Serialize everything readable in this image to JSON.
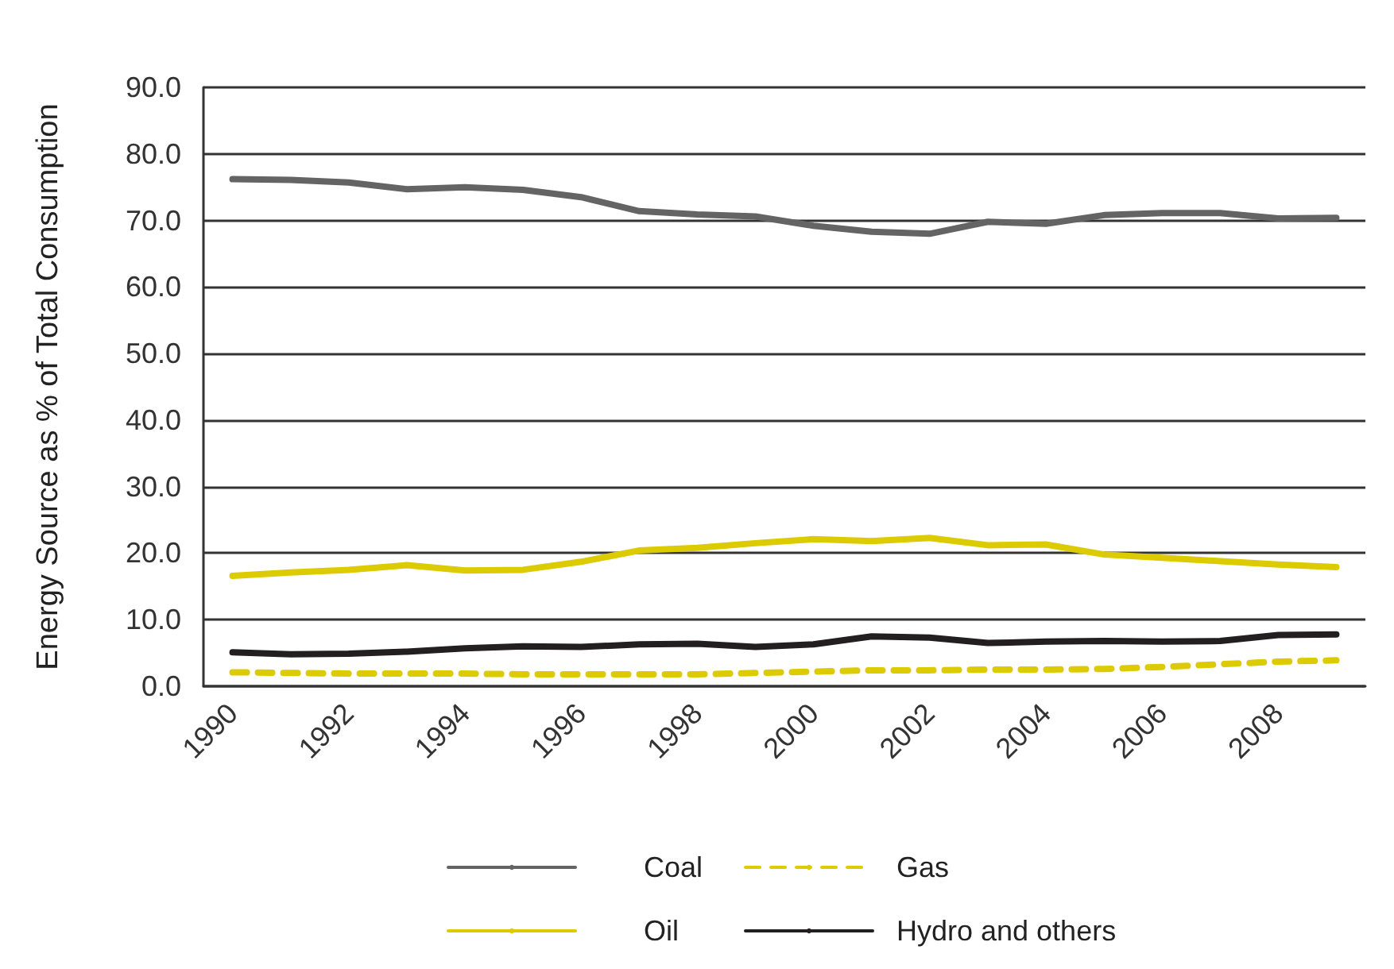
{
  "chart_data": {
    "type": "line",
    "ylabel": "Energy Source as % of Total Consumption",
    "categories": [
      "1990",
      null,
      "1992",
      null,
      "1994",
      null,
      "1996",
      null,
      "1998",
      null,
      "2000",
      null,
      "2002",
      null,
      "2004",
      null,
      "2006",
      null,
      "2008",
      null
    ],
    "series": [
      {
        "name": "Coal",
        "color": "#646464",
        "values": [
          76.2,
          76.1,
          75.7,
          74.7,
          75.0,
          74.6,
          73.5,
          71.4,
          70.9,
          70.6,
          69.2,
          68.3,
          68.0,
          69.8,
          69.5,
          70.8,
          71.1,
          71.1,
          70.3,
          70.4
        ]
      },
      {
        "name": "Gas",
        "color": "#dccb00",
        "line_style": "dashed",
        "values": [
          2.1,
          2.0,
          1.9,
          1.9,
          1.9,
          1.8,
          1.8,
          1.8,
          1.8,
          2.0,
          2.2,
          2.4,
          2.4,
          2.5,
          2.5,
          2.6,
          2.9,
          3.3,
          3.7,
          3.9
        ]
      },
      {
        "name": "Oil",
        "color": "#dccb00",
        "values": [
          16.6,
          17.1,
          17.5,
          18.2,
          17.4,
          17.5,
          18.7,
          20.4,
          20.8,
          21.5,
          22.1,
          21.8,
          22.3,
          21.2,
          21.3,
          19.8,
          19.3,
          18.8,
          18.3,
          17.9
        ]
      },
      {
        "name": "Hydro and others",
        "color": "#231f20",
        "values": [
          5.1,
          4.8,
          4.9,
          5.2,
          5.7,
          6.0,
          5.9,
          6.3,
          6.4,
          5.9,
          6.3,
          7.5,
          7.3,
          6.5,
          6.7,
          6.8,
          6.7,
          6.8,
          7.7,
          7.8
        ]
      }
    ],
    "ylim": [
      0,
      90
    ],
    "yticks": [
      {
        "value": 0,
        "label": "0.0"
      },
      {
        "value": 10,
        "label": "10.0"
      },
      {
        "value": 20,
        "label": "20.0"
      },
      {
        "value": 30,
        "label": "30.0"
      },
      {
        "value": 40,
        "label": "40.0"
      },
      {
        "value": 50,
        "label": "50.0"
      },
      {
        "value": 60,
        "label": "60.0"
      },
      {
        "value": 70,
        "label": "70.0"
      },
      {
        "value": 80,
        "label": "80.0"
      },
      {
        "value": 90,
        "label": "90.0"
      }
    ],
    "grid": "y",
    "legend": "bottom",
    "marker": "none",
    "line_style": "solid"
  }
}
